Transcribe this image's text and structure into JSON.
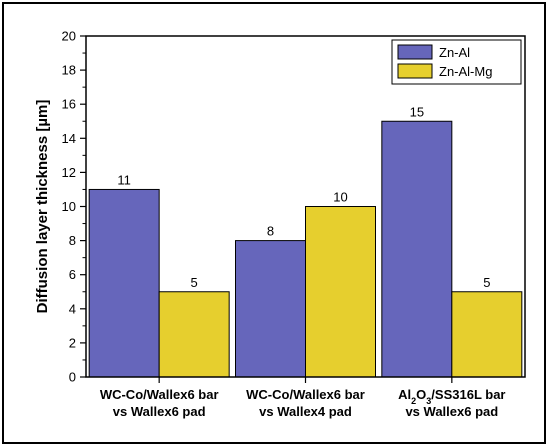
{
  "chart_data": {
    "type": "bar",
    "categories": [
      {
        "line1": "WC-Co/Wallex6 bar",
        "line2": "vs Wallex6 pad"
      },
      {
        "line1": "WC-Co/Wallex6 bar",
        "line2": "vs Wallex4 pad"
      },
      {
        "line1": "Al2O3/SS316L bar",
        "line2": "vs Wallex6 pad"
      }
    ],
    "series": [
      {
        "name": "Zn-Al",
        "color": "#6666bb",
        "values": [
          11,
          8,
          15
        ]
      },
      {
        "name": "Zn-Al-Mg",
        "color": "#e6cf2e",
        "values": [
          5,
          10,
          5
        ]
      }
    ],
    "ylabel": "Diffusion layer thickness [µm]",
    "xlabel": "",
    "ylim": [
      0,
      20
    ],
    "yticks": [
      0,
      2,
      4,
      6,
      8,
      10,
      12,
      14,
      16,
      18,
      20
    ],
    "grid": false,
    "legend_position": "top-right"
  }
}
